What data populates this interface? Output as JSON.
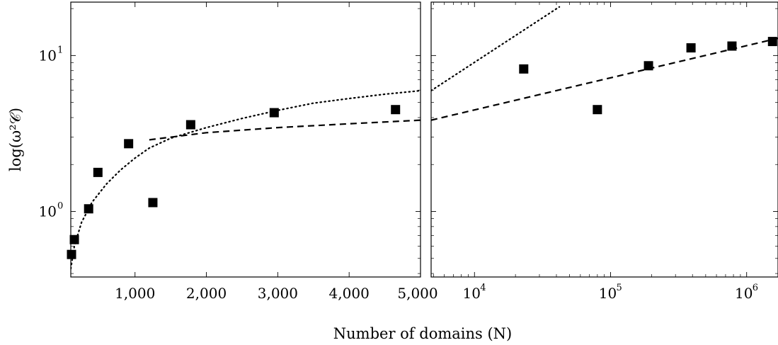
{
  "chart_data": {
    "type": "scatter",
    "xlabel": "Number of domains (N)",
    "ylabel": "log(ω²𝒞)",
    "y_scale": "log",
    "ylim": [
      0.38,
      22
    ],
    "y_ticks": [
      {
        "value": 1,
        "base": "10",
        "exp": "0"
      },
      {
        "value": 10,
        "base": "10",
        "exp": "1"
      }
    ],
    "panels": [
      {
        "name": "left",
        "x_scale": "linear",
        "xlim": [
          100,
          5000
        ],
        "x_ticks": [
          {
            "value": 1000,
            "label": "1,000"
          },
          {
            "value": 2000,
            "label": "2,000"
          },
          {
            "value": 3000,
            "label": "3,000"
          },
          {
            "value": 4000,
            "label": "4,000"
          },
          {
            "value": 5000,
            "label": "5,000"
          }
        ],
        "series": [
          {
            "marker": "square",
            "points": [
              {
                "x": 110,
                "y": 0.53
              },
              {
                "x": 150,
                "y": 0.66
              },
              {
                "x": 350,
                "y": 1.04
              },
              {
                "x": 480,
                "y": 1.78
              },
              {
                "x": 910,
                "y": 2.72
              },
              {
                "x": 1250,
                "y": 1.14
              },
              {
                "x": 1780,
                "y": 3.6
              },
              {
                "x": 2950,
                "y": 4.3
              },
              {
                "x": 4650,
                "y": 4.5
              }
            ]
          }
        ],
        "fits": [
          {
            "style": "dotted",
            "points": [
              [
                100,
                0.43
              ],
              [
                150,
                0.6
              ],
              [
                250,
                0.85
              ],
              [
                400,
                1.15
              ],
              [
                600,
                1.5
              ],
              [
                800,
                1.85
              ],
              [
                1000,
                2.2
              ],
              [
                1200,
                2.55
              ],
              [
                1500,
                2.95
              ],
              [
                2000,
                3.45
              ],
              [
                2500,
                3.95
              ],
              [
                3000,
                4.45
              ],
              [
                3500,
                4.95
              ],
              [
                4000,
                5.3
              ],
              [
                4500,
                5.65
              ],
              [
                5000,
                5.95
              ]
            ]
          },
          {
            "style": "dashed",
            "points": [
              [
                1200,
                2.88
              ],
              [
                2000,
                3.2
              ],
              [
                3000,
                3.45
              ],
              [
                4000,
                3.65
              ],
              [
                5000,
                3.85
              ]
            ]
          }
        ]
      },
      {
        "name": "right",
        "x_scale": "log",
        "xlim": [
          4800,
          1700000
        ],
        "x_ticks": [
          {
            "value": 10000,
            "base": "10",
            "exp": "4"
          },
          {
            "value": 100000,
            "base": "10",
            "exp": "5"
          },
          {
            "value": 1000000,
            "base": "10",
            "exp": "6"
          }
        ],
        "series": [
          {
            "marker": "square",
            "points": [
              {
                "x": 23000,
                "y": 8.2
              },
              {
                "x": 80000,
                "y": 4.5
              },
              {
                "x": 190000,
                "y": 8.6
              },
              {
                "x": 390000,
                "y": 11.2
              },
              {
                "x": 780000,
                "y": 11.5
              },
              {
                "x": 1550000,
                "y": 12.3
              }
            ]
          }
        ],
        "fits": [
          {
            "style": "dotted",
            "points": [
              [
                4800,
                5.95
              ],
              [
                42000,
                20.5
              ]
            ]
          },
          {
            "style": "dashed",
            "points": [
              [
                4800,
                3.85
              ],
              [
                1700000,
                12.9
              ]
            ]
          }
        ]
      }
    ]
  }
}
